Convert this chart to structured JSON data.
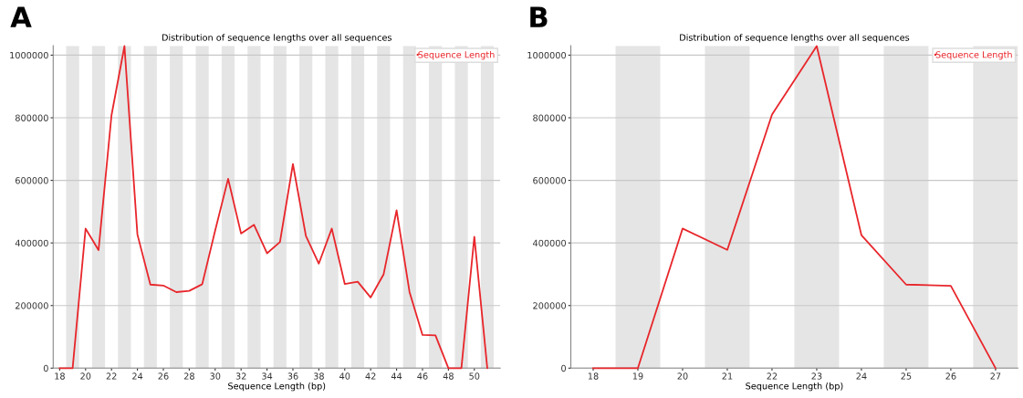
{
  "chart_data": [
    {
      "type": "line",
      "title": "Distribution of sequence lengths over all sequences",
      "xlabel": "Sequence Length (bp)",
      "annotations": [
        "A"
      ],
      "x": [
        18,
        19,
        20,
        21,
        22,
        23,
        24,
        25,
        26,
        27,
        28,
        29,
        30,
        31,
        32,
        33,
        34,
        35,
        36,
        37,
        38,
        39,
        40,
        41,
        42,
        43,
        44,
        45,
        46,
        47,
        48,
        49,
        50,
        51
      ],
      "series": [
        {
          "name": "Sequence Length",
          "color": "#e8262b",
          "values": [
            0,
            0,
            446000,
            377000,
            808000,
            1029000,
            427000,
            267000,
            264000,
            243000,
            247000,
            268000,
            440000,
            605000,
            430000,
            458000,
            367000,
            403000,
            652000,
            423000,
            334000,
            446000,
            269000,
            276000,
            226000,
            300000,
            504000,
            243000,
            106000,
            105000,
            0,
            0,
            420000,
            0
          ]
        }
      ],
      "xlim": [
        17.5,
        52
      ],
      "xticks": [
        18,
        20,
        22,
        24,
        26,
        28,
        30,
        32,
        34,
        36,
        38,
        40,
        42,
        44,
        46,
        48,
        50
      ],
      "ylim": [
        0,
        1030000
      ],
      "yticks": [
        0,
        200000,
        400000,
        600000,
        800000,
        1000000
      ],
      "bands": [
        {
          "axis": "x",
          "from": 18.5,
          "to": 19.5,
          "color": "#e5e5e5"
        },
        {
          "axis": "x",
          "from": 20.5,
          "to": 21.5,
          "color": "#e5e5e5"
        },
        {
          "axis": "x",
          "from": 22.5,
          "to": 23.5,
          "color": "#e5e5e5"
        },
        {
          "axis": "x",
          "from": 24.5,
          "to": 25.5,
          "color": "#e5e5e5"
        },
        {
          "axis": "x",
          "from": 26.5,
          "to": 27.5,
          "color": "#e5e5e5"
        },
        {
          "axis": "x",
          "from": 28.5,
          "to": 29.5,
          "color": "#e5e5e5"
        },
        {
          "axis": "x",
          "from": 30.5,
          "to": 31.5,
          "color": "#e5e5e5"
        },
        {
          "axis": "x",
          "from": 32.5,
          "to": 33.5,
          "color": "#e5e5e5"
        },
        {
          "axis": "x",
          "from": 34.5,
          "to": 35.5,
          "color": "#e5e5e5"
        },
        {
          "axis": "x",
          "from": 36.5,
          "to": 37.5,
          "color": "#e5e5e5"
        },
        {
          "axis": "x",
          "from": 38.5,
          "to": 39.5,
          "color": "#e5e5e5"
        },
        {
          "axis": "x",
          "from": 40.5,
          "to": 41.5,
          "color": "#e5e5e5"
        },
        {
          "axis": "x",
          "from": 42.5,
          "to": 43.5,
          "color": "#e5e5e5"
        },
        {
          "axis": "x",
          "from": 44.5,
          "to": 45.5,
          "color": "#e5e5e5"
        },
        {
          "axis": "x",
          "from": 46.5,
          "to": 47.5,
          "color": "#e5e5e5"
        },
        {
          "axis": "x",
          "from": 48.5,
          "to": 49.5,
          "color": "#e5e5e5"
        },
        {
          "axis": "x",
          "from": 50.5,
          "to": 51.5,
          "color": "#e5e5e5"
        }
      ],
      "grid": "y",
      "legend": "top right"
    },
    {
      "type": "line",
      "title": "Distribution of sequence lengths over all sequences",
      "xlabel": "Sequence Length (bp)",
      "annotations": [
        "B"
      ],
      "x": [
        18,
        19,
        20,
        21,
        22,
        23,
        24,
        25,
        26,
        27
      ],
      "series": [
        {
          "name": "Sequence Length",
          "color": "#e8262b",
          "values": [
            0,
            0,
            446000,
            378000,
            810000,
            1029000,
            425000,
            267000,
            263000,
            0
          ]
        }
      ],
      "xlim": [
        17.5,
        27.5
      ],
      "xticks": [
        18,
        19,
        20,
        21,
        22,
        23,
        24,
        25,
        26,
        27
      ],
      "ylim": [
        0,
        1030000
      ],
      "yticks": [
        0,
        200000,
        400000,
        600000,
        800000,
        1000000
      ],
      "bands": [
        {
          "axis": "x",
          "from": 18.5,
          "to": 19.5,
          "color": "#e5e5e5"
        },
        {
          "axis": "x",
          "from": 20.5,
          "to": 21.5,
          "color": "#e5e5e5"
        },
        {
          "axis": "x",
          "from": 22.5,
          "to": 23.5,
          "color": "#e5e5e5"
        },
        {
          "axis": "x",
          "from": 24.5,
          "to": 25.5,
          "color": "#e5e5e5"
        },
        {
          "axis": "x",
          "from": 26.5,
          "to": 27.5,
          "color": "#e5e5e5"
        }
      ],
      "grid": "y",
      "legend": "top right"
    }
  ]
}
